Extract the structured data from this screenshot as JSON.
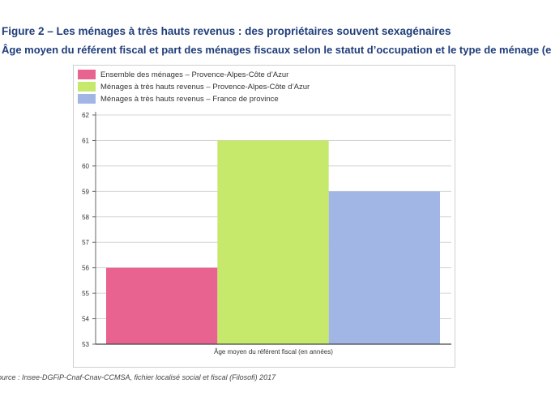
{
  "title": "Figure 2 – Les ménages à très hauts revenus : des propriétaires souvent sexagénaires",
  "subtitle": "Âge moyen du référent fiscal et part des ménages fiscaux selon le statut d’occupation et le type de ménage (en %)",
  "source": "ource : Insee-DGFiP-Cnaf-Cnav-CCMSA, fichier localisé social et fiscal (Filosofi) 2017",
  "chart_data": {
    "type": "bar",
    "categories": [
      "Âge moyen du référent fiscal (en années)"
    ],
    "xlabel": "",
    "ylabel": "",
    "ylim": [
      53,
      62
    ],
    "yticks": [
      53,
      54,
      55,
      56,
      57,
      58,
      59,
      60,
      61,
      62
    ],
    "grid": true,
    "legend_position": "top-left",
    "series": [
      {
        "name": "Ensemble des ménages – Provence-Alpes-Côte d’Azur",
        "values": [
          56
        ],
        "color": "#e8638f"
      },
      {
        "name": "Ménages à très hauts revenus – Provence-Alpes-Côte d’Azur",
        "values": [
          61
        ],
        "color": "#c6e86b"
      },
      {
        "name": "Ménages à très hauts revenus – France de province",
        "values": [
          59
        ],
        "color": "#a2b6e6"
      }
    ]
  }
}
